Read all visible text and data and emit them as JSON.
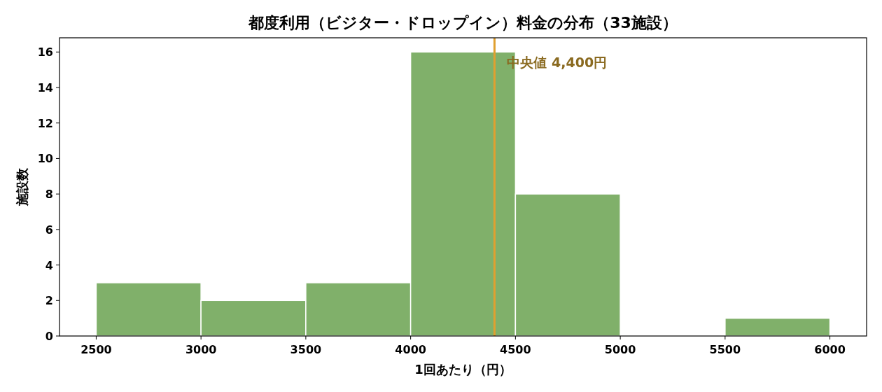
{
  "chart_data": {
    "type": "histogram",
    "title": "都度利用（ビジター・ドロップイン）料金の分布（33施設）",
    "xlabel": "1回あたり（円）",
    "ylabel": "施設数",
    "bins": [
      2500,
      3000,
      3500,
      4000,
      4500,
      5000,
      5500,
      6000
    ],
    "values": [
      3,
      2,
      3,
      16,
      8,
      0,
      1
    ],
    "color": "#80b06a",
    "xlim": [
      2325,
      6175
    ],
    "ylim": [
      0,
      16.8
    ],
    "xticks": [
      2500,
      3000,
      3500,
      4000,
      4500,
      5000,
      5500,
      6000
    ],
    "yticks": [
      0,
      2,
      4,
      6,
      8,
      10,
      12,
      14,
      16
    ],
    "ref_lines": [
      {
        "axis": "x",
        "value": 4400,
        "label": "中央値 4,400円",
        "color": "#e0a030"
      }
    ]
  }
}
